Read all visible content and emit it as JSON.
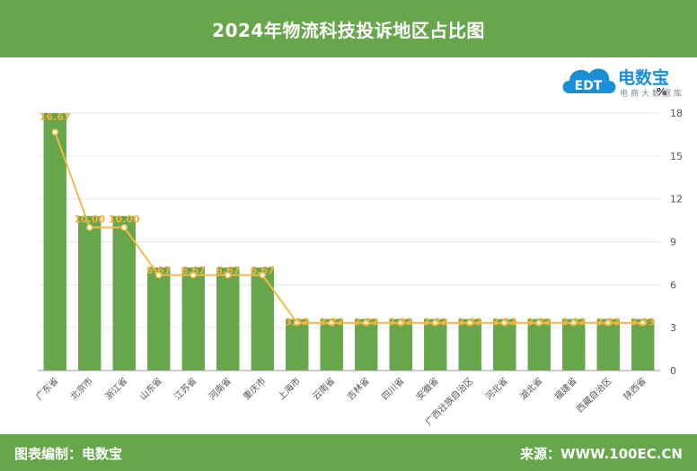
{
  "header": {
    "title": "2024年物流科技投诉地区占比图"
  },
  "footer": {
    "left": "图表编制：电数宝",
    "right": "来源：WWW.100EC.CN"
  },
  "logo": {
    "brand": "电数宝",
    "sub": "电商大数据库",
    "mark": "EDT"
  },
  "colors": {
    "bar": "#67a64a",
    "line": "#f5b94a",
    "label": "#f2b040",
    "axis": "#555555",
    "grid": "#e6e6e6"
  },
  "chart_data": {
    "type": "bar",
    "categories": [
      "广东省",
      "北京市",
      "浙江省",
      "山东省",
      "江苏省",
      "河南省",
      "重庆市",
      "上海市",
      "云南省",
      "吉林省",
      "四川省",
      "安徽省",
      "广西壮族自治区",
      "河北省",
      "湖北省",
      "福建省",
      "西藏自治区",
      "陕西省"
    ],
    "series": [
      {
        "type": "bar",
        "values": [
          18.0,
          10.8,
          10.8,
          7.2,
          7.2,
          7.2,
          7.2,
          3.6,
          3.6,
          3.6,
          3.6,
          3.6,
          3.6,
          3.6,
          3.6,
          3.6,
          3.6,
          3.6
        ]
      },
      {
        "type": "line",
        "values": [
          16.67,
          10.0,
          10.0,
          6.67,
          6.67,
          6.67,
          6.67,
          3.33,
          3.33,
          3.33,
          3.33,
          3.33,
          3.33,
          3.33,
          3.33,
          3.33,
          3.33,
          3.33
        ]
      }
    ],
    "data_labels": [
      "16.67",
      "10.00",
      "10.00",
      "6.67",
      "6.67",
      "6.67",
      "6.67",
      "3.33",
      "3.33",
      "3.33",
      "3.33",
      "3.33",
      "3.33",
      "3.33",
      "3.33",
      "3.33",
      "3.33",
      "3.33"
    ],
    "y_axis": {
      "position": "right",
      "unit": "%",
      "ticks": [
        0,
        3,
        6,
        9,
        12,
        15,
        18
      ],
      "ylim": [
        0,
        18
      ]
    },
    "grid": true
  }
}
